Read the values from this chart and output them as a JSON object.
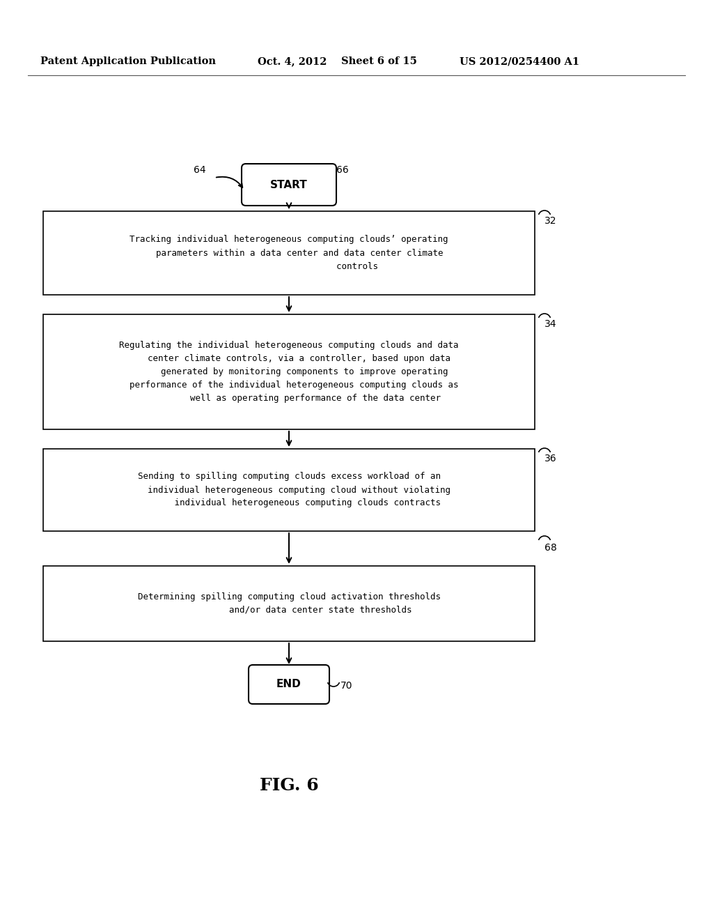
{
  "background_color": "#ffffff",
  "header_text": "Patent Application Publication",
  "header_date": "Oct. 4, 2012",
  "header_sheet": "Sheet 6 of 15",
  "header_patent": "US 2012/0254400 A1",
  "fig_label": "FIG. 6",
  "start_label": "START",
  "end_label": "END",
  "label_64": "64",
  "label_66": "66",
  "label_32": "32",
  "label_34": "34",
  "label_36": "36",
  "label_68": "68",
  "label_70": "70",
  "box1_text": "Tracking individual heterogeneous computing clouds’ operating\n    parameters within a data center and data center climate\n                          controls",
  "box2_text": "Regulating the individual heterogeneous computing clouds and data\n    center climate controls, via a controller, based upon data\n      generated by monitoring components to improve operating\n  performance of the individual heterogeneous computing clouds as\n          well as operating performance of the data center",
  "box3_text": "Sending to spilling computing clouds excess workload of an\n    individual heterogeneous computing cloud without violating\n       individual heterogeneous computing clouds contracts",
  "box4_text": "Determining spilling computing cloud activation thresholds\n            and/or data center state thresholds",
  "text_color": "#000000",
  "arrow_color": "#000000",
  "box_edge_color": "#000000",
  "box_face_color": "#ffffff"
}
